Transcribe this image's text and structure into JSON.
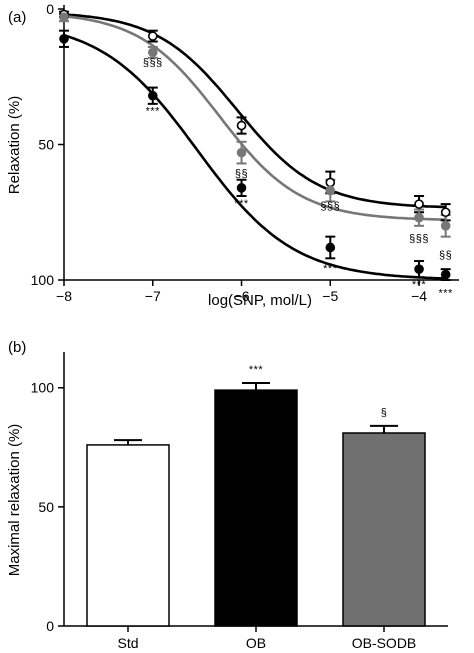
{
  "chart_data": [
    {
      "type": "line",
      "panel_label": "(a)",
      "xlabel": "log(SNP, mol/L)",
      "ylabel": "Relaxation (%)",
      "xlim": [
        -8,
        -3.55
      ],
      "ylim": [
        0,
        100
      ],
      "y_inverted": true,
      "x_ticks": [
        -8,
        -7,
        -6,
        -5,
        -4
      ],
      "x_tick_labels": [
        "−8",
        "−7",
        "−6",
        "−5",
        "−4"
      ],
      "y_ticks": [
        0,
        50,
        100
      ],
      "y_tick_labels": [
        "0",
        "50",
        "100"
      ],
      "grid": false,
      "series": [
        {
          "marker": "open-circle",
          "color": "#000000",
          "x": [
            -8,
            -7,
            -6,
            -5,
            -4,
            -3.7
          ],
          "y": [
            2,
            10,
            43,
            64,
            72,
            75
          ],
          "err": [
            1,
            2,
            3,
            4,
            3,
            3
          ],
          "fit": {
            "bottom": 1,
            "top": 73.5,
            "log_ec50": -6.05,
            "hill": 0.95
          }
        },
        {
          "marker": "filled-circle",
          "color": "#777777",
          "x": [
            -8,
            -7,
            -6,
            -5,
            -4,
            -3.7
          ],
          "y": [
            3,
            16,
            53,
            67,
            77,
            80
          ],
          "err": [
            1.5,
            2,
            4,
            4,
            3,
            4
          ],
          "fit": {
            "bottom": 1,
            "top": 78,
            "log_ec50": -6.25,
            "hill": 0.95
          }
        },
        {
          "marker": "filled-circle",
          "color": "#000000",
          "x": [
            -8,
            -7,
            -6,
            -5,
            -4,
            -3.7
          ],
          "y": [
            11,
            32,
            66,
            88,
            96,
            98
          ],
          "err": [
            3,
            3,
            3,
            4,
            3,
            2
          ],
          "fit": {
            "bottom": 4,
            "top": 100,
            "log_ec50": -6.5,
            "hill": 0.8
          }
        }
      ],
      "annotations": [
        {
          "text": "§§§",
          "x": -7,
          "y": 21
        },
        {
          "text": "***",
          "x": -7,
          "y": 39
        },
        {
          "text": "§§",
          "x": -6,
          "y": 62
        },
        {
          "text": "***",
          "x": -6,
          "y": 73
        },
        {
          "text": "§§§",
          "x": -5,
          "y": 74
        },
        {
          "text": "***",
          "x": -5,
          "y": 97
        },
        {
          "text": "§§§",
          "x": -4,
          "y": 86
        },
        {
          "text": "***",
          "x": -4,
          "y": 103
        },
        {
          "text": "§§",
          "x": -3.7,
          "y": 92
        },
        {
          "text": "***",
          "x": -3.7,
          "y": 106
        }
      ]
    },
    {
      "type": "bar",
      "panel_label": "(b)",
      "ylabel": "Maximal relaxation (%)",
      "xlabel": "",
      "categories": [
        "Std",
        "OB",
        "OB-SODB"
      ],
      "values": [
        76,
        99,
        81
      ],
      "errors": [
        2,
        3,
        3
      ],
      "colors": [
        "#ffffff",
        "#000000",
        "#707070"
      ],
      "ylim": [
        0,
        115
      ],
      "y_ticks": [
        0,
        50,
        100
      ],
      "y_tick_labels": [
        "0",
        "50",
        "100"
      ],
      "grid": false,
      "bar_annotations": [
        "",
        "***",
        "§"
      ]
    }
  ]
}
